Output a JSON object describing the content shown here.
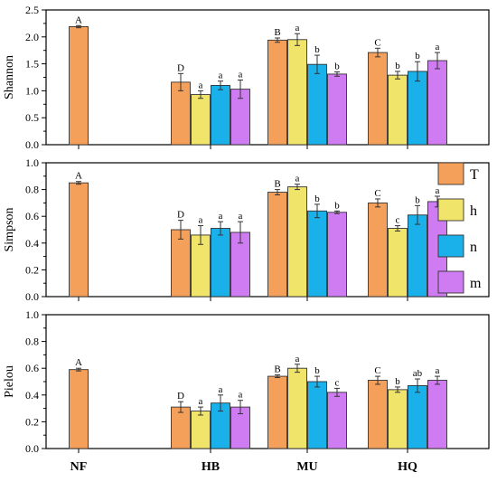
{
  "chart_data": {
    "type": "bar",
    "categories": [
      "NF",
      "HB",
      "MU",
      "HQ"
    ],
    "series_keys": [
      "T",
      "h",
      "n",
      "m"
    ],
    "colors": {
      "T": "#f5a05a",
      "h": "#f0e46a",
      "n": "#1ab0ea",
      "m": "#cf7cf2"
    },
    "legend": {
      "position": "right",
      "entries": [
        "T",
        "h",
        "n",
        "m"
      ]
    },
    "grid": false,
    "panels": [
      {
        "ylabel": "Shannon",
        "ylim": [
          0,
          2.5
        ],
        "yticks": [
          "0.0",
          "0.5",
          "1.0",
          "1.5",
          "2.0",
          "2.5"
        ],
        "groups": [
          {
            "category": "NF",
            "bars": [
              {
                "series": "T",
                "value": 2.19,
                "error": 0.02,
                "label": "A"
              }
            ]
          },
          {
            "category": "HB",
            "bars": [
              {
                "series": "T",
                "value": 1.16,
                "error": 0.16,
                "label": "D"
              },
              {
                "series": "h",
                "value": 0.93,
                "error": 0.07,
                "label": "a"
              },
              {
                "series": "n",
                "value": 1.1,
                "error": 0.08,
                "label": "a"
              },
              {
                "series": "m",
                "value": 1.03,
                "error": 0.17,
                "label": "a"
              }
            ]
          },
          {
            "category": "MU",
            "bars": [
              {
                "series": "T",
                "value": 1.94,
                "error": 0.04,
                "label": "B"
              },
              {
                "series": "h",
                "value": 1.95,
                "error": 0.11,
                "label": "a"
              },
              {
                "series": "n",
                "value": 1.49,
                "error": 0.17,
                "label": "b"
              },
              {
                "series": "m",
                "value": 1.31,
                "error": 0.04,
                "label": "b"
              }
            ]
          },
          {
            "category": "HQ",
            "bars": [
              {
                "series": "T",
                "value": 1.71,
                "error": 0.08,
                "label": "C"
              },
              {
                "series": "h",
                "value": 1.29,
                "error": 0.07,
                "label": "b"
              },
              {
                "series": "n",
                "value": 1.36,
                "error": 0.18,
                "label": "b"
              },
              {
                "series": "m",
                "value": 1.56,
                "error": 0.15,
                "label": "a"
              }
            ]
          }
        ]
      },
      {
        "ylabel": "Simpson",
        "ylim": [
          0,
          1.0
        ],
        "yticks": [
          "0.0",
          "0.2",
          "0.4",
          "0.6",
          "0.8",
          "1.0"
        ],
        "groups": [
          {
            "category": "NF",
            "bars": [
              {
                "series": "T",
                "value": 0.85,
                "error": 0.01,
                "label": "A"
              }
            ]
          },
          {
            "category": "HB",
            "bars": [
              {
                "series": "T",
                "value": 0.5,
                "error": 0.07,
                "label": "D"
              },
              {
                "series": "h",
                "value": 0.46,
                "error": 0.07,
                "label": "a"
              },
              {
                "series": "n",
                "value": 0.51,
                "error": 0.05,
                "label": "a"
              },
              {
                "series": "m",
                "value": 0.48,
                "error": 0.08,
                "label": "a"
              }
            ]
          },
          {
            "category": "MU",
            "bars": [
              {
                "series": "T",
                "value": 0.78,
                "error": 0.02,
                "label": "B"
              },
              {
                "series": "h",
                "value": 0.82,
                "error": 0.02,
                "label": "a"
              },
              {
                "series": "n",
                "value": 0.64,
                "error": 0.05,
                "label": "b"
              },
              {
                "series": "m",
                "value": 0.63,
                "error": 0.01,
                "label": "b"
              }
            ]
          },
          {
            "category": "HQ",
            "bars": [
              {
                "series": "T",
                "value": 0.7,
                "error": 0.03,
                "label": "C"
              },
              {
                "series": "h",
                "value": 0.51,
                "error": 0.02,
                "label": "c"
              },
              {
                "series": "n",
                "value": 0.61,
                "error": 0.07,
                "label": "b"
              },
              {
                "series": "m",
                "value": 0.71,
                "error": 0.04,
                "label": "a"
              }
            ]
          }
        ]
      },
      {
        "ylabel": "Pielou",
        "ylim": [
          0,
          1.0
        ],
        "yticks": [
          "0.0",
          "0.2",
          "0.4",
          "0.6",
          "0.8",
          "1.0"
        ],
        "groups": [
          {
            "category": "NF",
            "bars": [
              {
                "series": "T",
                "value": 0.59,
                "error": 0.01,
                "label": "A"
              }
            ]
          },
          {
            "category": "HB",
            "bars": [
              {
                "series": "T",
                "value": 0.31,
                "error": 0.04,
                "label": "D"
              },
              {
                "series": "h",
                "value": 0.28,
                "error": 0.03,
                "label": "a"
              },
              {
                "series": "n",
                "value": 0.34,
                "error": 0.06,
                "label": "a"
              },
              {
                "series": "m",
                "value": 0.31,
                "error": 0.05,
                "label": "a"
              }
            ]
          },
          {
            "category": "MU",
            "bars": [
              {
                "series": "T",
                "value": 0.54,
                "error": 0.01,
                "label": "B"
              },
              {
                "series": "h",
                "value": 0.6,
                "error": 0.03,
                "label": "a"
              },
              {
                "series": "n",
                "value": 0.5,
                "error": 0.04,
                "label": "b"
              },
              {
                "series": "m",
                "value": 0.42,
                "error": 0.03,
                "label": "c"
              }
            ]
          },
          {
            "category": "HQ",
            "bars": [
              {
                "series": "T",
                "value": 0.51,
                "error": 0.03,
                "label": "C"
              },
              {
                "series": "h",
                "value": 0.44,
                "error": 0.02,
                "label": "b"
              },
              {
                "series": "n",
                "value": 0.47,
                "error": 0.05,
                "label": "ab"
              },
              {
                "series": "m",
                "value": 0.51,
                "error": 0.03,
                "label": "a"
              }
            ]
          }
        ]
      }
    ]
  }
}
